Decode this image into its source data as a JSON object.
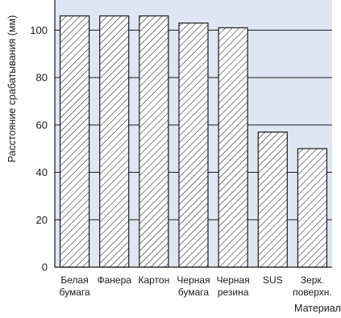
{
  "chart_data": {
    "type": "bar",
    "categories": [
      [
        "Белая",
        "бумага"
      ],
      [
        "Фанера"
      ],
      [
        "Картон"
      ],
      [
        "Черная",
        "бумага"
      ],
      [
        "Черная",
        "резина"
      ],
      [
        "SUS"
      ],
      [
        "Зерк.",
        "поверхн."
      ]
    ],
    "values": [
      106,
      106,
      106,
      103,
      101,
      57,
      50
    ],
    "xlabel": "Материал",
    "ylabel": "Расстояние срабатывания (мм)",
    "ylim": [
      0,
      110
    ],
    "yticks": [
      0,
      20,
      40,
      60,
      80,
      100
    ],
    "grid": true,
    "colors": {
      "plot_background": "#dde6f2",
      "gridline": "#1a1a1a",
      "bar_fill": "#ffffff",
      "bar_hatch": "#1a1a1a",
      "bar_outline": "#1a1a1a"
    }
  }
}
